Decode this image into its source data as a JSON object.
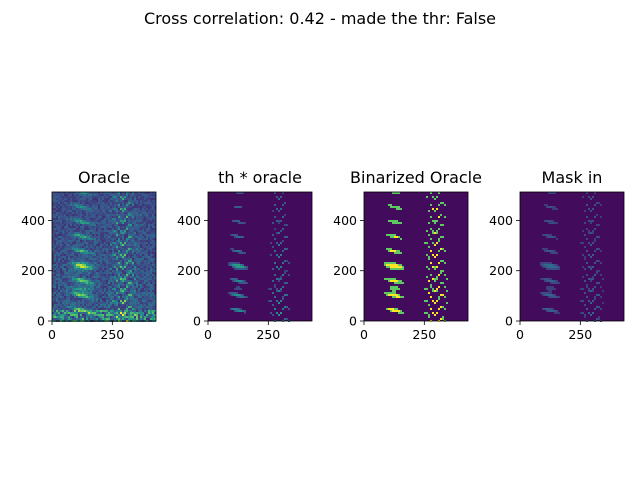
{
  "figure": {
    "suptitle": "Cross correlation: 0.42 - made the thr: False"
  },
  "chart_data": [
    {
      "type": "heatmap",
      "title": "Oracle",
      "colormap": "viridis",
      "xlim": [
        0,
        431
      ],
      "ylim": [
        0,
        513
      ],
      "xticks": [
        0,
        250
      ],
      "yticks": [
        0,
        200,
        400
      ],
      "intensity": "full",
      "grid": false
    },
    {
      "type": "heatmap",
      "title": "th * oracle",
      "colormap": "viridis",
      "xlim": [
        0,
        431
      ],
      "ylim": [
        0,
        513
      ],
      "xticks": [
        0,
        250
      ],
      "yticks": [
        0,
        200,
        400
      ],
      "intensity": "thresholded",
      "grid": false
    },
    {
      "type": "heatmap",
      "title": "Binarized Oracle",
      "colormap": "viridis",
      "xlim": [
        0,
        431
      ],
      "ylim": [
        0,
        513
      ],
      "xticks": [
        0,
        250
      ],
      "yticks": [
        0,
        200,
        400
      ],
      "intensity": "binary",
      "grid": false
    },
    {
      "type": "heatmap",
      "title": "Mask in",
      "colormap": "viridis",
      "xlim": [
        0,
        431
      ],
      "ylim": [
        0,
        513
      ],
      "xticks": [
        0,
        250
      ],
      "yticks": [
        0,
        200,
        400
      ],
      "intensity": "faint",
      "grid": false
    }
  ]
}
